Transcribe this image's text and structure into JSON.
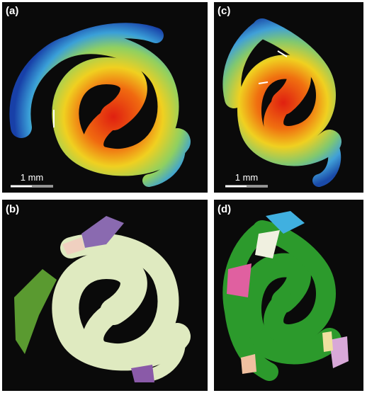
{
  "panels": [
    {
      "label": "(a)",
      "scale_bar": "1 mm"
    },
    {
      "label": "(b)"
    },
    {
      "label": "(c)",
      "scale_bar": "1 mm"
    },
    {
      "label": "(d)"
    }
  ]
}
